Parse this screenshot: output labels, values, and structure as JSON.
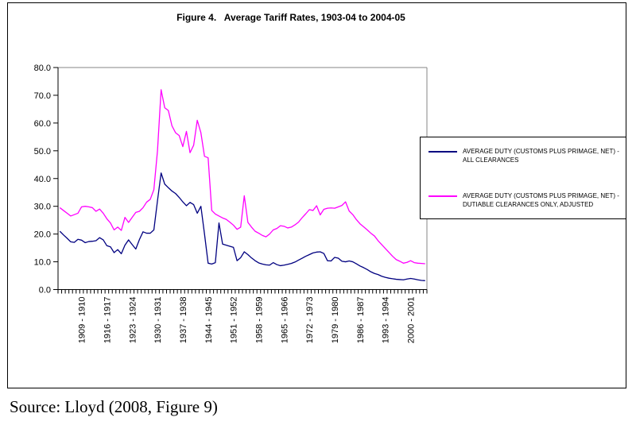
{
  "title": "Figure 4.   Average Tariff Rates, 1903-04 to 2004-05",
  "source_note": "Source: Lloyd (2008, Figure 9)",
  "colors": {
    "series_all_clearances": "#000080",
    "series_dutiable_adjusted": "#FF00FF",
    "plot_border": "#848484",
    "axis": "#000000",
    "frame": "#000000"
  },
  "legend": {
    "position": "right",
    "entries": [
      {
        "series": "all_clearances",
        "lines": [
          "AVERAGE DUTY (CUSTOMS PLUS PRIMAGE, NET) -",
          "ALL CLEARANCES"
        ]
      },
      {
        "series": "dutiable_adjusted",
        "lines": [
          "AVERAGE DUTY (CUSTOMS PLUS PRIMAGE, NET) -",
          "DUTIABLE CLEARANCES ONLY, ADJUSTED"
        ]
      }
    ]
  },
  "chart_data": {
    "type": "line",
    "title": "Figure 4.   Average Tariff Rates, 1903-04 to 2004-05",
    "xlabel": "",
    "ylabel": "",
    "ylim": [
      0,
      80
    ],
    "grid": false,
    "legend_position": "right",
    "frequency": "annual fiscal years 1903-04 to 2004-05",
    "y_tick_labels": [
      "0.0",
      "10.0",
      "20.0",
      "30.0",
      "40.0",
      "50.0",
      "60.0",
      "70.0",
      "80.0"
    ],
    "x_tick_labels": [
      "1909 - 1910",
      "1916 - 1917",
      "1923 - 1924",
      "1930 - 1931",
      "1937 - 1938",
      "1944 - 1945",
      "1951 - 1952",
      "1958 - 1959",
      "1965 - 1966",
      "1972 - 1973",
      "1979 - 1980",
      "1986 - 1987",
      "1993 - 1994",
      "2000 - 2001"
    ],
    "x_tick_indices": [
      6,
      13,
      20,
      27,
      34,
      41,
      48,
      55,
      62,
      69,
      76,
      83,
      90,
      97
    ],
    "x_start_year": 1903,
    "series": [
      {
        "name": "AVERAGE DUTY (CUSTOMS PLUS PRIMAGE, NET) - ALL CLEARANCES",
        "color_key": "series_all_clearances",
        "values": [
          21.0,
          19.7,
          18.5,
          17.2,
          17.0,
          18.1,
          17.8,
          16.9,
          17.3,
          17.4,
          17.6,
          18.7,
          17.9,
          15.8,
          15.4,
          13.3,
          14.4,
          12.9,
          16.0,
          17.9,
          16.2,
          14.6,
          18.0,
          20.8,
          20.3,
          20.3,
          21.5,
          32.0,
          42.0,
          38.0,
          36.7,
          35.5,
          34.6,
          33.2,
          31.6,
          30.2,
          31.4,
          30.6,
          27.5,
          30.0,
          20.0,
          9.5,
          9.2,
          9.7,
          24.0,
          16.4,
          16.0,
          15.6,
          15.2,
          10.4,
          11.5,
          13.6,
          12.6,
          11.4,
          10.4,
          9.6,
          9.2,
          8.9,
          8.8,
          9.7,
          9.0,
          8.6,
          8.8,
          9.1,
          9.4,
          9.9,
          10.6,
          11.3,
          12.0,
          12.6,
          13.2,
          13.5,
          13.6,
          13.0,
          10.4,
          10.3,
          11.6,
          11.3,
          10.2,
          10.0,
          10.3,
          10.0,
          9.3,
          8.5,
          7.9,
          7.2,
          6.4,
          5.8,
          5.4,
          4.8,
          4.4,
          4.1,
          3.9,
          3.7,
          3.6,
          3.5,
          3.8,
          4.0,
          3.8,
          3.5,
          3.3,
          3.2
        ]
      },
      {
        "name": "AVERAGE DUTY (CUSTOMS PLUS PRIMAGE, NET) - DUTIABLE CLEARANCES ONLY, ADJUSTED",
        "color_key": "series_dutiable_adjusted",
        "values": [
          29.5,
          28.5,
          27.5,
          26.5,
          27.0,
          27.5,
          29.8,
          30.0,
          29.8,
          29.5,
          28.2,
          29.0,
          27.5,
          25.5,
          24.0,
          21.5,
          22.5,
          21.3,
          26.0,
          24.2,
          26.0,
          27.8,
          28.2,
          29.5,
          31.5,
          32.5,
          36.0,
          50.0,
          72.0,
          65.5,
          64.5,
          59.0,
          56.5,
          55.5,
          51.5,
          57.0,
          49.3,
          52.0,
          61.0,
          56.5,
          48.0,
          47.5,
          28.5,
          27.2,
          26.5,
          25.8,
          25.3,
          24.3,
          23.2,
          21.7,
          22.5,
          33.8,
          24.2,
          22.5,
          21.0,
          20.3,
          19.5,
          19.0,
          20.0,
          21.5,
          22.0,
          23.0,
          22.8,
          22.2,
          22.5,
          23.3,
          24.3,
          25.9,
          27.3,
          28.8,
          28.5,
          30.2,
          26.9,
          28.9,
          29.3,
          29.4,
          29.3,
          29.8,
          30.3,
          31.6,
          28.3,
          27.0,
          25.2,
          23.7,
          22.6,
          21.5,
          20.3,
          19.3,
          17.6,
          16.2,
          14.8,
          13.4,
          12.0,
          10.8,
          10.2,
          9.5,
          9.8,
          10.4,
          9.7,
          9.5,
          9.4,
          9.3
        ]
      }
    ]
  }
}
